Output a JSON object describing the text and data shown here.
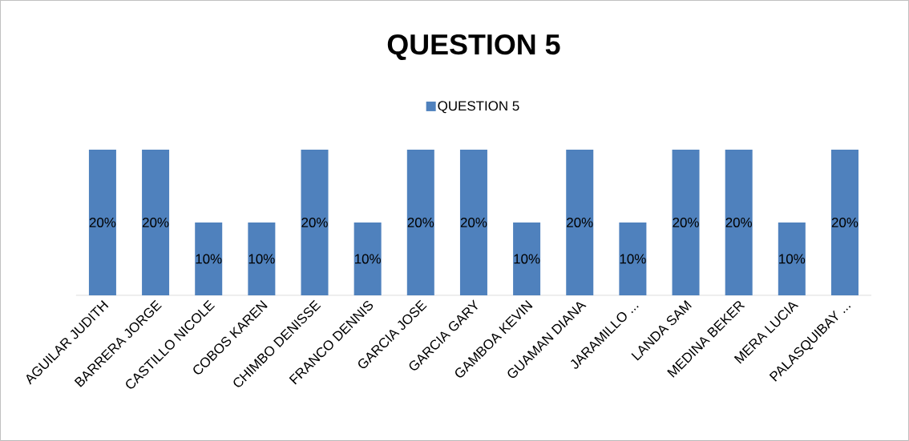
{
  "chart_data": {
    "type": "bar",
    "title": "QUESTION 5",
    "categories": [
      "AGUILAR JUDITH",
      "BARRERA JORGE",
      "CASTILLO NICOLE",
      "COBOS KAREN",
      "CHIMBO DENISSE",
      "FRANCO DENNIS",
      "GARCIA JOSE",
      "GARCIA GARY",
      "GAMBOA KEVIN",
      "GUAMAN DIANA",
      "JARAMILLO ...",
      "LANDA SAM",
      "MEDINA BEKER",
      "MERA LUCIA",
      "PALASQUIBAY ..."
    ],
    "series": [
      {
        "name": "QUESTION 5",
        "color": "#4f81bd",
        "values": [
          20,
          20,
          10,
          10,
          20,
          10,
          20,
          20,
          10,
          20,
          10,
          20,
          20,
          10,
          20
        ],
        "value_labels": [
          "20%",
          "20%",
          "10%",
          "10%",
          "20%",
          "10%",
          "20%",
          "20%",
          "10%",
          "20%",
          "10%",
          "20%",
          "20%",
          "10%",
          "20%"
        ]
      }
    ],
    "legend": "top"
  }
}
